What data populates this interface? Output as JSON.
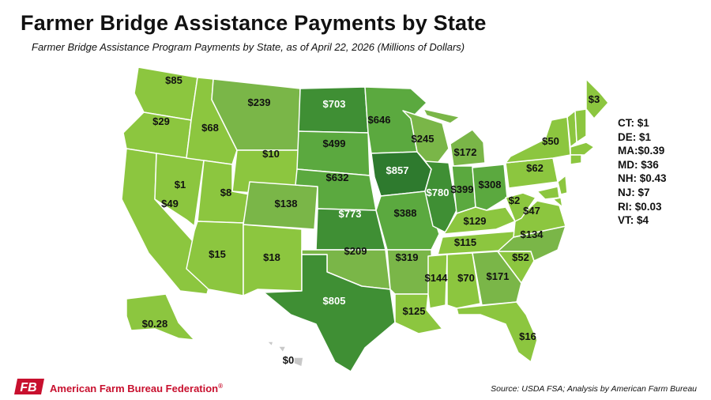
{
  "title": "Farmer Bridge Assistance Payments by State",
  "subtitle": "Farmer Bridge Assistance Program Payments by State, as of April 22, 2026  (Millions of Dollars)",
  "colors": {
    "light": "#8cc63f",
    "mid_light": "#7ab648",
    "mid": "#5ba93f",
    "dark": "#3f8f34",
    "darkest": "#2e7a2e",
    "none": "#c8c8c8",
    "border": "#ffffff"
  },
  "states": [
    {
      "id": "WA",
      "label": "$85",
      "level": "light"
    },
    {
      "id": "OR",
      "label": "$29",
      "level": "light"
    },
    {
      "id": "CA",
      "label": "$49",
      "level": "light"
    },
    {
      "id": "NV",
      "label": "$1",
      "level": "light"
    },
    {
      "id": "ID",
      "label": "$68",
      "level": "light"
    },
    {
      "id": "MT",
      "label": "$239",
      "level": "mid_light"
    },
    {
      "id": "WY",
      "label": "$10",
      "level": "light"
    },
    {
      "id": "UT",
      "label": "$8",
      "level": "light"
    },
    {
      "id": "AZ",
      "label": "$15",
      "level": "light"
    },
    {
      "id": "NM",
      "label": "$18",
      "level": "light"
    },
    {
      "id": "CO",
      "label": "$138",
      "level": "mid_light"
    },
    {
      "id": "ND",
      "label": "$703",
      "level": "dark"
    },
    {
      "id": "SD",
      "label": "$499",
      "level": "mid"
    },
    {
      "id": "NE",
      "label": "$632",
      "level": "mid"
    },
    {
      "id": "KS",
      "label": "$773",
      "level": "dark"
    },
    {
      "id": "OK",
      "label": "$209",
      "level": "mid_light"
    },
    {
      "id": "TX",
      "label": "$805",
      "level": "dark"
    },
    {
      "id": "MN",
      "label": "$646",
      "level": "mid"
    },
    {
      "id": "IA",
      "label": "$857",
      "level": "darkest"
    },
    {
      "id": "MO",
      "label": "$388",
      "level": "mid"
    },
    {
      "id": "AR",
      "label": "$319",
      "level": "mid_light"
    },
    {
      "id": "LA",
      "label": "$125",
      "level": "light"
    },
    {
      "id": "WI",
      "label": "$245",
      "level": "mid_light"
    },
    {
      "id": "IL",
      "label": "$780",
      "level": "dark"
    },
    {
      "id": "MI",
      "label": "$172",
      "level": "mid_light"
    },
    {
      "id": "IN",
      "label": "$399",
      "level": "mid"
    },
    {
      "id": "OH",
      "label": "$308",
      "level": "mid"
    },
    {
      "id": "KY",
      "label": "$129",
      "level": "light"
    },
    {
      "id": "TN",
      "label": "$115",
      "level": "light"
    },
    {
      "id": "MS",
      "label": "$144",
      "level": "light"
    },
    {
      "id": "AL",
      "label": "$70",
      "level": "light"
    },
    {
      "id": "GA",
      "label": "$171",
      "level": "mid_light"
    },
    {
      "id": "FL",
      "label": "$16",
      "level": "light"
    },
    {
      "id": "SC",
      "label": "$52",
      "level": "light"
    },
    {
      "id": "NC",
      "label": "$134",
      "level": "mid_light"
    },
    {
      "id": "VA",
      "label": "$47",
      "level": "light"
    },
    {
      "id": "WV",
      "label": "$2",
      "level": "light"
    },
    {
      "id": "PA",
      "label": "$62",
      "level": "light"
    },
    {
      "id": "NY",
      "label": "$50",
      "level": "light"
    },
    {
      "id": "ME",
      "label": "$3",
      "level": "light"
    },
    {
      "id": "AK",
      "label": "$0.28",
      "level": "light"
    },
    {
      "id": "HI",
      "label": "$0",
      "level": "none"
    }
  ],
  "small_states": [
    {
      "abbr": "CT:",
      "value": "$1"
    },
    {
      "abbr": "DE:",
      "value": "$1"
    },
    {
      "abbr": "MA:",
      "value": "$0.39"
    },
    {
      "abbr": "MD:",
      "value": "$36"
    },
    {
      "abbr": "NH:",
      "value": "$0.43"
    },
    {
      "abbr": "NJ:",
      "value": "$7"
    },
    {
      "abbr": "RI:",
      "value": "$0.03"
    },
    {
      "abbr": "VT:",
      "value": "$4"
    }
  ],
  "footer": {
    "logo_text": "FB",
    "org": "American Farm Bureau Federation",
    "org_mark": "®",
    "source": "Source: USDA FSA; Analysis by American Farm Bureau"
  }
}
